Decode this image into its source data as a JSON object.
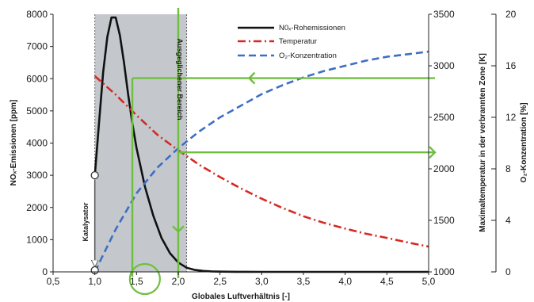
{
  "chart_data": {
    "type": "line",
    "xlabel": "Globales Luftverhältnis [-]",
    "ylabel": "NOₓ-Emissionen [ppm]",
    "y2label": "Maximaltemperatur in der verbrannten Zone [K]",
    "y3label": "O₂-Konzentration [%]",
    "xlim": [
      0.5,
      5.0
    ],
    "ylim": [
      0,
      8000
    ],
    "y2lim": [
      1000,
      3500
    ],
    "y3lim": [
      0,
      20
    ],
    "x_ticks": [
      "0,5",
      "1,0",
      "1,5",
      "2,0",
      "2,5",
      "3,0",
      "3,5",
      "4,0",
      "4,5",
      "5,0"
    ],
    "y_ticks": [
      "0",
      "1000",
      "2000",
      "3000",
      "4000",
      "5000",
      "6000",
      "7000",
      "8000"
    ],
    "y2_ticks": [
      "1000",
      "1500",
      "2000",
      "2500",
      "3000",
      "3500"
    ],
    "y3_ticks": [
      "0",
      "4",
      "8",
      "12",
      "16",
      "20"
    ],
    "legend": {
      "position": "top-right",
      "entries": [
        "N0ₓ-Rohemissionen",
        "Temperatur",
        "O₂-Konzentration"
      ]
    },
    "series": [
      {
        "name": "N0ₓ-Rohemissionen",
        "axis": "left",
        "color": "#111111",
        "style": "solid",
        "x": [
          1.0,
          1.05,
          1.1,
          1.15,
          1.2,
          1.25,
          1.3,
          1.35,
          1.4,
          1.45,
          1.5,
          1.6,
          1.7,
          1.8,
          1.9,
          2.0,
          2.1,
          2.2,
          2.3,
          2.4,
          2.5,
          2.6,
          2.7,
          2.8,
          3.0,
          3.2,
          3.5,
          4.0,
          4.5,
          5.0
        ],
        "values": [
          3000,
          4600,
          6200,
          7300,
          7900,
          7900,
          7350,
          6500,
          5500,
          4600,
          3850,
          2650,
          1750,
          1050,
          580,
          290,
          130,
          60,
          30,
          15,
          8,
          5,
          3,
          2,
          1,
          0,
          0,
          0,
          0,
          0
        ]
      },
      {
        "name": "Temperatur",
        "axis": "right1",
        "color": "#d42a25",
        "style": "dash-dot",
        "x": [
          1.0,
          1.25,
          1.5,
          1.75,
          2.0,
          2.25,
          2.5,
          2.75,
          3.0,
          3.25,
          3.5,
          3.75,
          4.0,
          4.25,
          4.5,
          4.75,
          5.0
        ],
        "values": [
          2900,
          2720,
          2520,
          2330,
          2180,
          2040,
          1920,
          1810,
          1710,
          1620,
          1540,
          1475,
          1420,
          1370,
          1330,
          1285,
          1245
        ]
      },
      {
        "name": "O₂-Konzentration",
        "axis": "right2",
        "color": "#3d6fc4",
        "style": "dashed",
        "x": [
          1.0,
          1.25,
          1.5,
          1.75,
          2.0,
          2.25,
          2.5,
          2.75,
          3.0,
          3.25,
          3.5,
          3.75,
          4.0,
          4.25,
          4.5,
          4.75,
          5.0
        ],
        "values": [
          0,
          3.3,
          6.1,
          8.1,
          9.6,
          10.9,
          12.0,
          12.9,
          13.8,
          14.5,
          15.1,
          15.6,
          16.0,
          16.4,
          16.7,
          16.9,
          17.1
        ]
      }
    ],
    "bands": [
      {
        "x_range": [
          1.0,
          2.1
        ],
        "color": "#c4c8cd"
      }
    ],
    "annotations": [
      {
        "text": "Katalysator",
        "orientation": "vertical"
      },
      {
        "text": "Ausgeglichener Bereich",
        "orientation": "vertical"
      }
    ],
    "overlay_color": "#6fbf3f"
  }
}
